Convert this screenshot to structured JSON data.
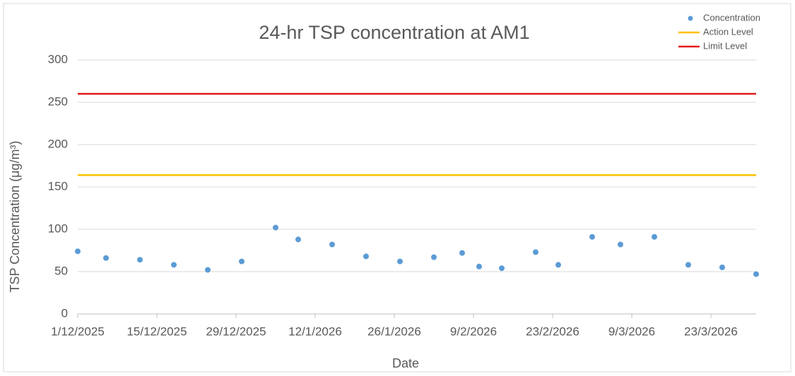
{
  "chart_data": {
    "type": "scatter",
    "title": "24-hr TSP concentration at AM1",
    "x_label": "Date",
    "y_label": "TSP Concentration (μg/m³)",
    "xlim": [
      "2025-12-01",
      "2026-03-31"
    ],
    "xticks": [
      {
        "value": "2025-12-01",
        "label": "1/12/2025"
      },
      {
        "value": "2025-12-15",
        "label": "15/12/2025"
      },
      {
        "value": "2025-12-29",
        "label": "29/12/2025"
      },
      {
        "value": "2026-01-12",
        "label": "12/1/2026"
      },
      {
        "value": "2026-01-26",
        "label": "26/1/2026"
      },
      {
        "value": "2026-02-09",
        "label": "9/2/2026"
      },
      {
        "value": "2026-02-23",
        "label": "23/2/2026"
      },
      {
        "value": "2026-03-09",
        "label": "9/3/2026"
      },
      {
        "value": "2026-03-23",
        "label": "23/3/2026"
      }
    ],
    "ylim": [
      0,
      300
    ],
    "yticks": [
      0,
      50,
      100,
      150,
      200,
      250,
      300
    ],
    "grid": true,
    "legend": "top-right",
    "series": [
      {
        "name": "Concentration",
        "color": "#5b9bd5",
        "mode": "markers",
        "x": [
          "2025-12-01",
          "2025-12-06",
          "2025-12-12",
          "2025-12-18",
          "2025-12-24",
          "2025-12-30",
          "2026-01-05",
          "2026-01-09",
          "2026-01-15",
          "2026-01-21",
          "2026-01-27",
          "2026-02-02",
          "2026-02-07",
          "2026-02-10",
          "2026-02-14",
          "2026-02-20",
          "2026-02-24",
          "2026-03-02",
          "2026-03-07",
          "2026-03-13",
          "2026-03-19",
          "2026-03-25",
          "2026-03-31"
        ],
        "values": [
          74,
          66,
          64,
          58,
          52,
          62,
          102,
          88,
          82,
          68,
          62,
          67,
          72,
          56,
          54,
          73,
          58,
          91,
          82,
          91,
          58,
          55,
          47
        ]
      },
      {
        "name": "Action Level",
        "color": "#ffc000",
        "mode": "line",
        "x": [
          "2025-12-01",
          "2026-03-31"
        ],
        "values": [
          164,
          164
        ]
      },
      {
        "name": "Limit Level",
        "color": "#e31a1c",
        "mode": "line",
        "x": [
          "2025-12-01",
          "2026-03-31"
        ],
        "values": [
          260,
          260
        ]
      }
    ]
  }
}
